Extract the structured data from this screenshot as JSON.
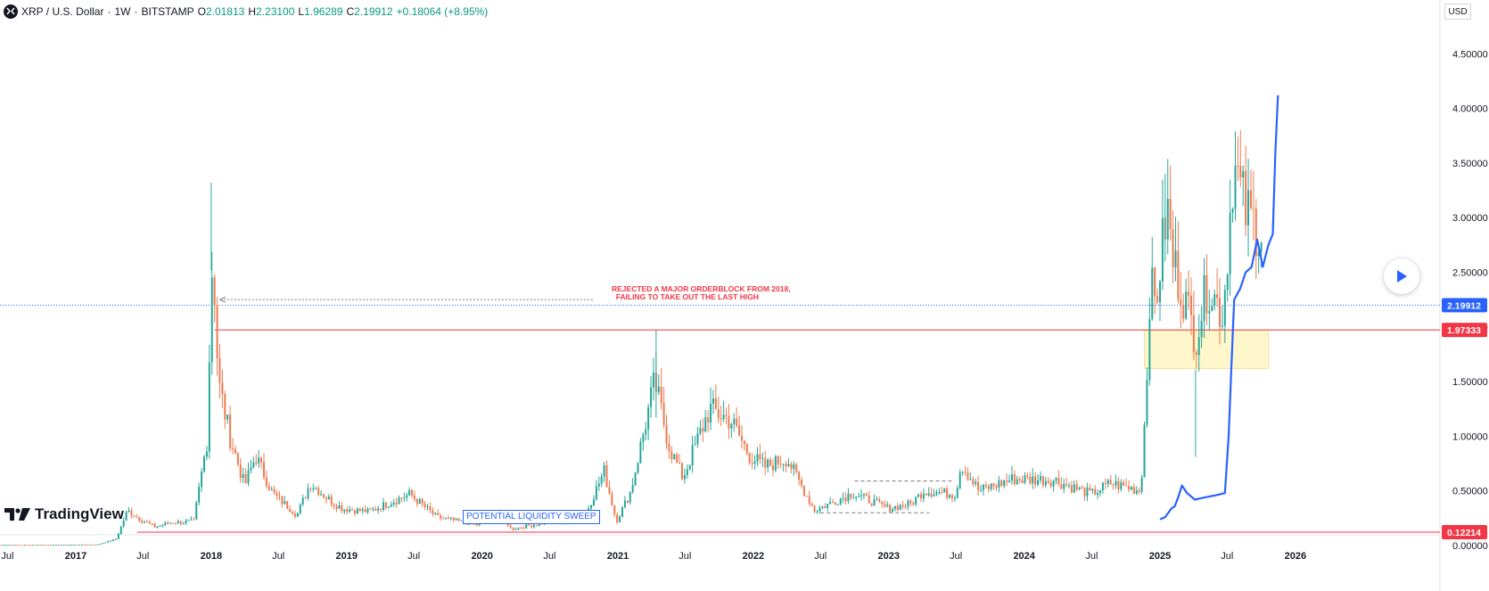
{
  "header": {
    "symbol": "XRP / U.S. Dollar",
    "interval": "1W",
    "exchange": "BITSTAMP",
    "open_label": "O",
    "open": "2.01813",
    "high_label": "H",
    "high": "2.23100",
    "low_label": "L",
    "low": "1.96289",
    "close_label": "C",
    "close": "2.19912",
    "change": "+0.18064 (+8.95%)",
    "separator": "·"
  },
  "currency": "USD",
  "brand": "TradingView",
  "colors": {
    "up": "#089981",
    "down": "#f23645",
    "up_candle": "#26a69a",
    "down_candle": "#ef7a4f",
    "projection": "#2962ff",
    "zone": "#fff7cc",
    "price_line": "#2962ff"
  },
  "chart_data": {
    "type": "candlestick",
    "title": "XRP / U.S. Dollar · 1W · BITSTAMP",
    "xlabel": "",
    "ylabel": "",
    "ylim": [
      0,
      4.5
    ],
    "x_ticks": [
      "Jul",
      "2017",
      "Jul",
      "2018",
      "Jul",
      "2019",
      "Jul",
      "2020",
      "Jul",
      "2021",
      "Jul",
      "2022",
      "Jul",
      "2023",
      "Jul",
      "2024",
      "Jul",
      "2025",
      "Jul",
      "2026"
    ],
    "y_ticks": [
      "4.50000",
      "4.00000",
      "3.50000",
      "3.00000",
      "2.50000",
      "2.00000",
      "1.50000",
      "1.00000",
      "0.50000",
      "0.00000"
    ],
    "price_labels": {
      "current": "2.19912",
      "resistance": "1.97333",
      "support": "0.12214"
    },
    "levels": {
      "current": 2.19912,
      "resistance": 1.97333,
      "support": 0.12214
    },
    "zone": {
      "from_date": "2024-11-20",
      "to_date": "2025-10-20",
      "low": 1.62,
      "high": 1.97
    },
    "annotations": {
      "orderblock_line1": "REJECTED A MAJOR ORDERBLOCK FROM 2018,",
      "orderblock_line2": "FAILING TO TAKE OUT THE LAST HIGH",
      "liquidity_sweep": "POTENTIAL LIQUIDITY SWEEP"
    },
    "price_anchors": [
      [
        "2016-06-01",
        0.006
      ],
      [
        "2016-12-01",
        0.007
      ],
      [
        "2017-03-01",
        0.01
      ],
      [
        "2017-04-20",
        0.06
      ],
      [
        "2017-05-20",
        0.32
      ],
      [
        "2017-06-15",
        0.26
      ],
      [
        "2017-08-01",
        0.17
      ],
      [
        "2017-09-15",
        0.21
      ],
      [
        "2017-11-15",
        0.22
      ],
      [
        "2017-12-20",
        0.95
      ],
      [
        "2018-01-05",
        2.75
      ],
      [
        "2018-01-20",
        1.5
      ],
      [
        "2018-02-20",
        1.0
      ],
      [
        "2018-04-01",
        0.55
      ],
      [
        "2018-05-01",
        0.82
      ],
      [
        "2018-06-15",
        0.48
      ],
      [
        "2018-08-20",
        0.28
      ],
      [
        "2018-09-25",
        0.57
      ],
      [
        "2018-11-15",
        0.42
      ],
      [
        "2018-12-20",
        0.34
      ],
      [
        "2019-03-01",
        0.31
      ],
      [
        "2019-06-20",
        0.47
      ],
      [
        "2019-09-01",
        0.26
      ],
      [
        "2019-12-20",
        0.19
      ],
      [
        "2020-02-15",
        0.32
      ],
      [
        "2020-03-20",
        0.15
      ],
      [
        "2020-06-01",
        0.2
      ],
      [
        "2020-10-01",
        0.25
      ],
      [
        "2020-11-25",
        0.68
      ],
      [
        "2020-12-28",
        0.22
      ],
      [
        "2021-02-05",
        0.5
      ],
      [
        "2021-04-10",
        1.5
      ],
      [
        "2021-05-20",
        0.9
      ],
      [
        "2021-06-25",
        0.62
      ],
      [
        "2021-09-05",
        1.25
      ],
      [
        "2021-11-01",
        1.15
      ],
      [
        "2021-12-20",
        0.83
      ],
      [
        "2022-02-01",
        0.72
      ],
      [
        "2022-04-01",
        0.8
      ],
      [
        "2022-06-15",
        0.32
      ],
      [
        "2022-09-25",
        0.48
      ],
      [
        "2022-12-30",
        0.34
      ],
      [
        "2023-03-01",
        0.38
      ],
      [
        "2023-04-05",
        0.5
      ],
      [
        "2023-06-30",
        0.47
      ],
      [
        "2023-07-15",
        0.75
      ],
      [
        "2023-09-01",
        0.5
      ],
      [
        "2023-12-01",
        0.61
      ],
      [
        "2024-03-20",
        0.6
      ],
      [
        "2024-06-30",
        0.47
      ],
      [
        "2024-08-20",
        0.57
      ],
      [
        "2024-10-20",
        0.52
      ],
      [
        "2024-11-10",
        0.5
      ],
      [
        "2024-11-25",
        1.4
      ],
      [
        "2024-12-05",
        2.4
      ],
      [
        "2024-12-20",
        2.2
      ],
      [
        "2025-01-20",
        3.1
      ],
      [
        "2025-02-05",
        2.6
      ],
      [
        "2025-03-05",
        2.3
      ],
      [
        "2025-04-07",
        1.9
      ],
      [
        "2025-05-10",
        2.4
      ],
      [
        "2025-06-20",
        2.1
      ],
      [
        "2025-07-18",
        3.5
      ],
      [
        "2025-08-20",
        3.05
      ],
      [
        "2025-09-25",
        2.9
      ],
      [
        "2025-10-05",
        2.85
      ]
    ],
    "projection": [
      [
        "2025-01-01",
        0.24
      ],
      [
        "2025-01-15",
        0.26
      ],
      [
        "2025-02-01",
        0.34
      ],
      [
        "2025-02-10",
        0.36
      ],
      [
        "2025-02-20",
        0.45
      ],
      [
        "2025-03-01",
        0.55
      ],
      [
        "2025-03-15",
        0.48
      ],
      [
        "2025-04-05",
        0.42
      ],
      [
        "2025-05-01",
        0.44
      ],
      [
        "2025-06-01",
        0.46
      ],
      [
        "2025-06-25",
        0.48
      ],
      [
        "2025-07-05",
        1.0
      ],
      [
        "2025-07-12",
        1.6
      ],
      [
        "2025-07-20",
        2.25
      ],
      [
        "2025-08-05",
        2.35
      ],
      [
        "2025-08-20",
        2.5
      ],
      [
        "2025-09-05",
        2.55
      ],
      [
        "2025-09-20",
        2.8
      ],
      [
        "2025-10-05",
        2.55
      ],
      [
        "2025-10-20",
        2.75
      ],
      [
        "2025-11-01",
        2.85
      ],
      [
        "2025-11-08",
        3.6
      ],
      [
        "2025-11-15",
        4.12
      ]
    ],
    "dashed_range": {
      "from_date": "2022-07-01",
      "to_date": "2023-06-20",
      "top": 0.59,
      "bottom": 0.3
    }
  }
}
